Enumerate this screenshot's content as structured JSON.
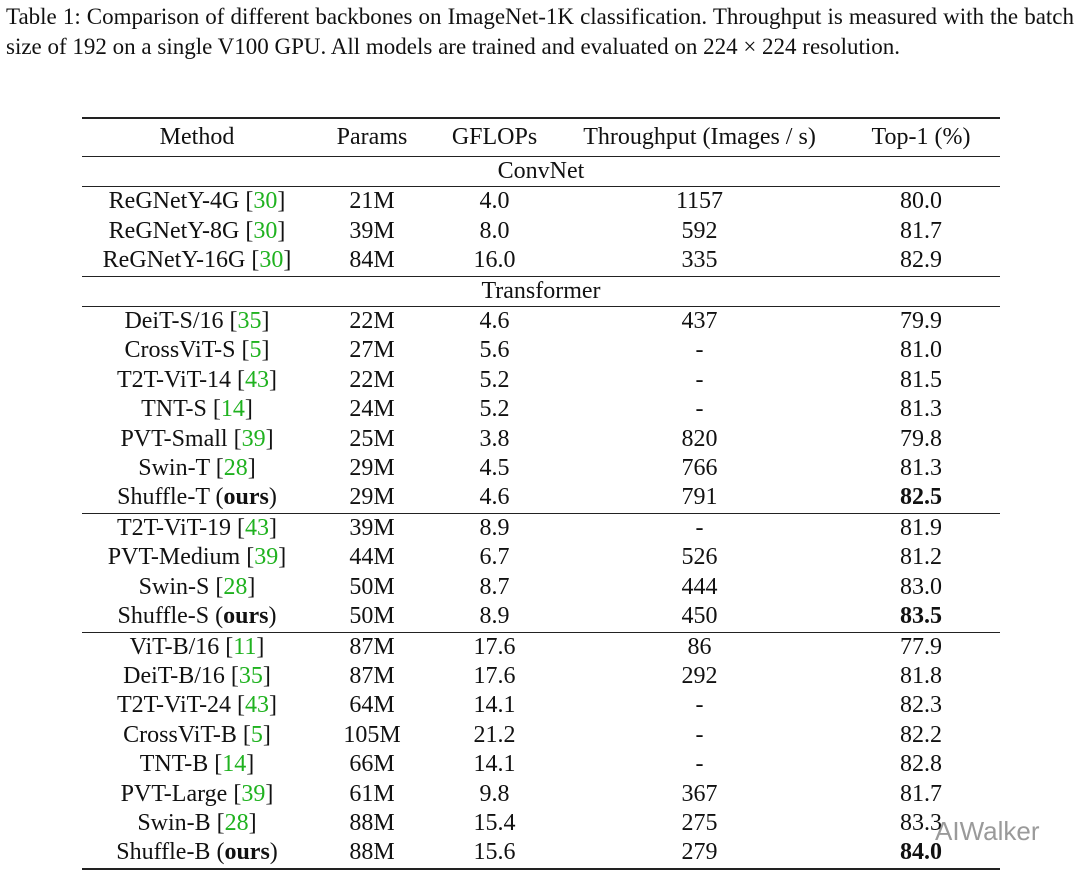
{
  "caption": {
    "label": "Table 1:",
    "text": "Comparison of different backbones on ImageNet-1K classification. Throughput is measured with the batch size of 192 on a single V100 GPU. All models are trained and evaluated on 224 × 224 resolution."
  },
  "table": {
    "columns": [
      "Method",
      "Params",
      "GFLOPs",
      "Throughput (Images / s)",
      "Top-1 (%)"
    ],
    "sections": [
      {
        "title": "ConvNet",
        "groups": [
          [
            {
              "method": [
                "ReGNetY-4G [",
                {
                  "ref": "30"
                },
                "]"
              ],
              "params": "21M",
              "gflops": "4.0",
              "throughput": "1157",
              "top1": "80.0"
            },
            {
              "method": [
                "ReGNetY-8G [",
                {
                  "ref": "30"
                },
                "]"
              ],
              "params": "39M",
              "gflops": "8.0",
              "throughput": "592",
              "top1": "81.7"
            },
            {
              "method": [
                "ReGNetY-16G [",
                {
                  "ref": "30"
                },
                "]"
              ],
              "params": "84M",
              "gflops": "16.0",
              "throughput": "335",
              "top1": "82.9"
            }
          ]
        ]
      },
      {
        "title": "Transformer",
        "groups": [
          [
            {
              "method": [
                "DeiT-S/16 [",
                {
                  "ref": "35"
                },
                "]"
              ],
              "params": "22M",
              "gflops": "4.6",
              "throughput": "437",
              "top1": "79.9"
            },
            {
              "method": [
                "CrossViT-S [",
                {
                  "ref": "5"
                },
                "]"
              ],
              "params": "27M",
              "gflops": "5.6",
              "throughput": "-",
              "top1": "81.0"
            },
            {
              "method": [
                "T2T-ViT-14 [",
                {
                  "ref": "43"
                },
                "]"
              ],
              "params": "22M",
              "gflops": "5.2",
              "throughput": "-",
              "top1": "81.5"
            },
            {
              "method": [
                "TNT-S [",
                {
                  "ref": "14"
                },
                "]"
              ],
              "params": "24M",
              "gflops": "5.2",
              "throughput": "-",
              "top1": "81.3"
            },
            {
              "method": [
                "PVT-Small [",
                {
                  "ref": "39"
                },
                "]"
              ],
              "params": "25M",
              "gflops": "3.8",
              "throughput": "820",
              "top1": "79.8"
            },
            {
              "method": [
                "Swin-T [",
                {
                  "ref": "28"
                },
                "]"
              ],
              "params": "29M",
              "gflops": "4.5",
              "throughput": "766",
              "top1": "81.3"
            },
            {
              "method": [
                "Shuffle-T (",
                {
                  "bold": "ours"
                },
                ")"
              ],
              "params": "29M",
              "gflops": "4.6",
              "throughput": "791",
              "top1": "82.5",
              "top1_bold": true
            }
          ],
          [
            {
              "method": [
                "T2T-ViT-19 [",
                {
                  "ref": "43"
                },
                "]"
              ],
              "params": "39M",
              "gflops": "8.9",
              "throughput": "-",
              "top1": "81.9"
            },
            {
              "method": [
                "PVT-Medium [",
                {
                  "ref": "39"
                },
                "]"
              ],
              "params": "44M",
              "gflops": "6.7",
              "throughput": "526",
              "top1": "81.2"
            },
            {
              "method": [
                "Swin-S [",
                {
                  "ref": "28"
                },
                "]"
              ],
              "params": "50M",
              "gflops": "8.7",
              "throughput": "444",
              "top1": "83.0"
            },
            {
              "method": [
                "Shuffle-S (",
                {
                  "bold": "ours"
                },
                ")"
              ],
              "params": "50M",
              "gflops": "8.9",
              "throughput": "450",
              "top1": "83.5",
              "top1_bold": true
            }
          ],
          [
            {
              "method": [
                "ViT-B/16 [",
                {
                  "ref": "11"
                },
                "]"
              ],
              "params": "87M",
              "gflops": "17.6",
              "throughput": "86",
              "top1": "77.9"
            },
            {
              "method": [
                "DeiT-B/16 [",
                {
                  "ref": "35"
                },
                "]"
              ],
              "params": "87M",
              "gflops": "17.6",
              "throughput": "292",
              "top1": "81.8"
            },
            {
              "method": [
                "T2T-ViT-24 [",
                {
                  "ref": "43"
                },
                "]"
              ],
              "params": "64M",
              "gflops": "14.1",
              "throughput": "-",
              "top1": "82.3"
            },
            {
              "method": [
                "CrossViT-B [",
                {
                  "ref": "5"
                },
                "]"
              ],
              "params": "105M",
              "gflops": "21.2",
              "throughput": "-",
              "top1": "82.2"
            },
            {
              "method": [
                "TNT-B [",
                {
                  "ref": "14"
                },
                "]"
              ],
              "params": "66M",
              "gflops": "14.1",
              "throughput": "-",
              "top1": "82.8"
            },
            {
              "method": [
                "PVT-Large [",
                {
                  "ref": "39"
                },
                "]"
              ],
              "params": "61M",
              "gflops": "9.8",
              "throughput": "367",
              "top1": "81.7"
            },
            {
              "method": [
                "Swin-B [",
                {
                  "ref": "28"
                },
                "]"
              ],
              "params": "88M",
              "gflops": "15.4",
              "throughput": "275",
              "top1": "83.3"
            },
            {
              "method": [
                "Shuffle-B (",
                {
                  "bold": "ours"
                },
                ")"
              ],
              "params": "88M",
              "gflops": "15.6",
              "throughput": "279",
              "top1": "84.0",
              "top1_bold": true
            }
          ]
        ]
      }
    ]
  },
  "watermark": "AIWalker"
}
